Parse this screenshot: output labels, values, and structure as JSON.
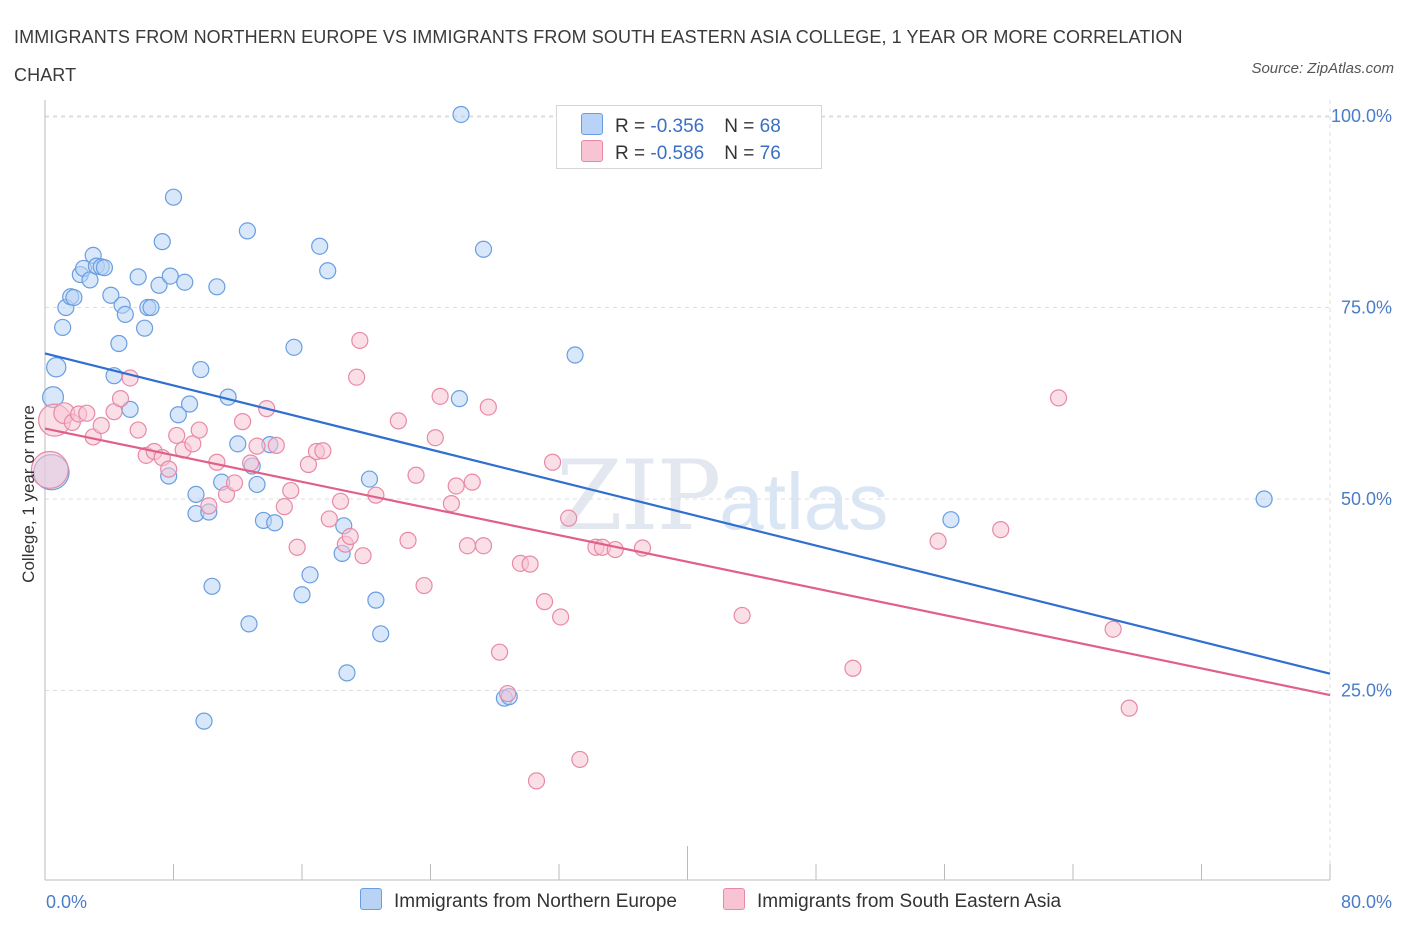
{
  "title": "IMMIGRANTS FROM NORTHERN EUROPE VS IMMIGRANTS FROM SOUTH EASTERN ASIA COLLEGE, 1 YEAR OR MORE CORRELATION CHART",
  "source": "Source: ZipAtlas.com",
  "watermark": {
    "zip": "ZIP",
    "atlas": "atlas"
  },
  "legend_top": [
    {
      "r_label": "R = ",
      "r_value": "-0.356",
      "n_label": "N = ",
      "n_value": "68"
    },
    {
      "r_label": "R = ",
      "r_value": "-0.586",
      "n_label": "N = ",
      "n_value": "76"
    }
  ],
  "legend_bottom": [
    "Immigrants from Northern Europe",
    "Immigrants from South Eastern Asia"
  ],
  "colors": {
    "blue_fill": "#b8d3f5",
    "blue_stroke": "#6a9ee0",
    "blue_line": "#2f6fd0",
    "pink_fill": "#f8c4d4",
    "pink_stroke": "#e889a8",
    "pink_line": "#e0608a",
    "grid": "#dddddd",
    "tick_text": "#4a7cc9"
  },
  "chart_data": {
    "type": "scatter",
    "title": "IMMIGRANTS FROM NORTHERN EUROPE VS IMMIGRANTS FROM SOUTH EASTERN ASIA COLLEGE, 1 YEAR OR MORE CORRELATION CHART",
    "xlabel": "",
    "ylabel": "College, 1 year or more",
    "xlim": [
      0,
      80
    ],
    "ylim": [
      0,
      102
    ],
    "x_tick_labels": [
      "0.0%",
      "80.0%"
    ],
    "y_ticks": [
      25,
      50,
      75,
      100
    ],
    "y_tick_labels": [
      "25.0%",
      "50.0%",
      "75.0%",
      "100.0%"
    ],
    "grid": true,
    "legend_position": "top-center",
    "series": [
      {
        "name": "Immigrants from Northern Europe",
        "r": -0.356,
        "n": 68,
        "trend": {
          "x": [
            0,
            80
          ],
          "y": [
            69.0,
            27.2
          ]
        },
        "points": [
          [
            0.4,
            53.5,
            2.2
          ],
          [
            0.5,
            63.3,
            1.3
          ],
          [
            0.7,
            67.2,
            1.2
          ],
          [
            1.1,
            72.4,
            1
          ],
          [
            1.3,
            75.0,
            1
          ],
          [
            1.6,
            76.4,
            1
          ],
          [
            1.8,
            76.3,
            1
          ],
          [
            2.2,
            79.3,
            1
          ],
          [
            2.4,
            80.1,
            1
          ],
          [
            2.8,
            78.6,
            1
          ],
          [
            3.0,
            81.8,
            1
          ],
          [
            3.2,
            80.4,
            1
          ],
          [
            3.5,
            80.3,
            1
          ],
          [
            3.7,
            80.2,
            1
          ],
          [
            4.1,
            76.6,
            1
          ],
          [
            4.3,
            66.1,
            1
          ],
          [
            4.6,
            70.3,
            1
          ],
          [
            4.8,
            75.3,
            1
          ],
          [
            5.3,
            61.7,
            1
          ],
          [
            5.0,
            74.1,
            1
          ],
          [
            5.8,
            79.0,
            1
          ],
          [
            6.2,
            72.3,
            1
          ],
          [
            6.4,
            75.0,
            1
          ],
          [
            6.6,
            75.0,
            1
          ],
          [
            7.1,
            77.9,
            1
          ],
          [
            7.3,
            83.6,
            1
          ],
          [
            7.8,
            79.1,
            1
          ],
          [
            8.0,
            89.4,
            1
          ],
          [
            8.7,
            78.3,
            1
          ],
          [
            8.3,
            61.0,
            1
          ],
          [
            7.7,
            53.0,
            1
          ],
          [
            9.0,
            62.4,
            1
          ],
          [
            9.7,
            66.9,
            1
          ],
          [
            9.4,
            50.6,
            1
          ],
          [
            9.4,
            48.1,
            1
          ],
          [
            10.2,
            48.3,
            1
          ],
          [
            10.7,
            77.7,
            1
          ],
          [
            10.4,
            38.6,
            1
          ],
          [
            11.4,
            63.3,
            1
          ],
          [
            11.0,
            52.2,
            1
          ],
          [
            12.0,
            57.2,
            1
          ],
          [
            12.6,
            85.0,
            1
          ],
          [
            12.9,
            54.3,
            1
          ],
          [
            13.2,
            51.9,
            1
          ],
          [
            13.6,
            47.2,
            1
          ],
          [
            14.0,
            57.1,
            1
          ],
          [
            14.3,
            46.9,
            1
          ],
          [
            12.7,
            33.7,
            1
          ],
          [
            9.9,
            21.0,
            1
          ],
          [
            15.5,
            69.8,
            1
          ],
          [
            16.0,
            37.5,
            1
          ],
          [
            16.5,
            40.1,
            1
          ],
          [
            17.1,
            83.0,
            1
          ],
          [
            17.6,
            79.8,
            1
          ],
          [
            18.5,
            42.9,
            1
          ],
          [
            18.6,
            46.5,
            1
          ],
          [
            18.8,
            27.3,
            1
          ],
          [
            20.6,
            36.8,
            1
          ],
          [
            20.9,
            32.4,
            1
          ],
          [
            20.2,
            52.6,
            1
          ],
          [
            25.9,
            100.2,
            1
          ],
          [
            25.8,
            63.1,
            1
          ],
          [
            27.3,
            82.6,
            1
          ],
          [
            28.6,
            24.0,
            1
          ],
          [
            28.9,
            24.2,
            1
          ],
          [
            33.0,
            68.8,
            1
          ],
          [
            56.4,
            47.3,
            1
          ],
          [
            75.9,
            50.0,
            1
          ]
        ]
      },
      {
        "name": "Immigrants from South Eastern Asia",
        "r": -0.586,
        "n": 76,
        "trend": {
          "x": [
            0,
            80
          ],
          "y": [
            59.2,
            24.4
          ]
        },
        "points": [
          [
            0.3,
            53.8,
            2.3
          ],
          [
            0.6,
            60.3,
            2.0
          ],
          [
            1.2,
            61.2,
            1.3
          ],
          [
            1.7,
            60.0,
            1
          ],
          [
            2.1,
            61.1,
            1
          ],
          [
            2.6,
            61.2,
            1
          ],
          [
            3.0,
            58.1,
            1
          ],
          [
            3.5,
            59.6,
            1
          ],
          [
            4.3,
            61.4,
            1
          ],
          [
            4.7,
            63.1,
            1
          ],
          [
            5.3,
            65.8,
            1
          ],
          [
            5.8,
            59.0,
            1
          ],
          [
            6.3,
            55.7,
            1
          ],
          [
            6.8,
            56.2,
            1
          ],
          [
            7.3,
            55.4,
            1
          ],
          [
            7.7,
            53.9,
            1
          ],
          [
            8.2,
            58.3,
            1
          ],
          [
            8.6,
            56.4,
            1
          ],
          [
            9.2,
            57.2,
            1
          ],
          [
            9.6,
            59.0,
            1
          ],
          [
            10.2,
            49.1,
            1
          ],
          [
            10.7,
            54.8,
            1
          ],
          [
            11.3,
            50.6,
            1
          ],
          [
            11.8,
            52.1,
            1
          ],
          [
            12.3,
            60.1,
            1
          ],
          [
            12.8,
            54.7,
            1
          ],
          [
            13.2,
            56.9,
            1
          ],
          [
            13.8,
            61.8,
            1
          ],
          [
            14.4,
            57.0,
            1
          ],
          [
            14.9,
            49.0,
            1
          ],
          [
            15.3,
            51.1,
            1
          ],
          [
            15.7,
            43.7,
            1
          ],
          [
            16.4,
            54.5,
            1
          ],
          [
            16.9,
            56.2,
            1
          ],
          [
            17.3,
            56.3,
            1
          ],
          [
            17.7,
            47.4,
            1
          ],
          [
            18.4,
            49.7,
            1
          ],
          [
            18.7,
            44.1,
            1
          ],
          [
            19.0,
            45.1,
            1
          ],
          [
            19.4,
            65.9,
            1
          ],
          [
            19.6,
            70.7,
            1
          ],
          [
            19.8,
            42.6,
            1
          ],
          [
            20.6,
            50.5,
            1
          ],
          [
            22.0,
            60.2,
            1
          ],
          [
            22.6,
            44.6,
            1
          ],
          [
            23.1,
            53.1,
            1
          ],
          [
            23.6,
            38.7,
            1
          ],
          [
            24.3,
            58.0,
            1
          ],
          [
            24.6,
            63.4,
            1
          ],
          [
            25.3,
            49.4,
            1
          ],
          [
            25.6,
            51.7,
            1
          ],
          [
            26.3,
            43.9,
            1
          ],
          [
            26.6,
            52.2,
            1
          ],
          [
            27.3,
            43.9,
            1
          ],
          [
            27.6,
            62.0,
            1
          ],
          [
            28.3,
            30.0,
            1
          ],
          [
            28.8,
            24.6,
            1
          ],
          [
            29.6,
            41.6,
            1
          ],
          [
            30.2,
            41.5,
            1
          ],
          [
            30.6,
            13.2,
            1
          ],
          [
            31.1,
            36.6,
            1
          ],
          [
            31.6,
            54.8,
            1
          ],
          [
            32.1,
            34.6,
            1
          ],
          [
            32.6,
            47.5,
            1
          ],
          [
            33.3,
            16.0,
            1
          ],
          [
            34.3,
            43.7,
            1
          ],
          [
            34.7,
            43.7,
            1
          ],
          [
            35.5,
            43.4,
            1
          ],
          [
            37.2,
            43.6,
            1
          ],
          [
            43.4,
            34.8,
            1
          ],
          [
            50.3,
            27.9,
            1
          ],
          [
            55.6,
            44.5,
            1
          ],
          [
            59.5,
            46.0,
            1
          ],
          [
            63.1,
            63.2,
            1
          ],
          [
            66.5,
            33.0,
            1
          ],
          [
            67.5,
            22.7,
            1
          ]
        ]
      }
    ]
  }
}
